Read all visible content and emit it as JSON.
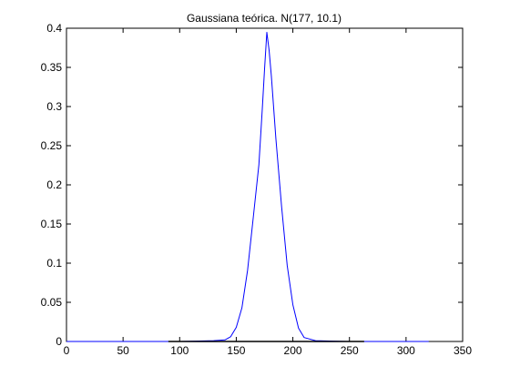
{
  "chart_data": {
    "type": "line",
    "title": "Gaussiana teórica. N(177, 10.1)",
    "xlabel": "",
    "ylabel": "",
    "xlim": [
      0,
      350
    ],
    "ylim": [
      0,
      0.4
    ],
    "xticks": [
      0,
      50,
      100,
      150,
      200,
      250,
      300,
      350
    ],
    "yticks": [
      0,
      0.05,
      0.1,
      0.15,
      0.2,
      0.25,
      0.3,
      0.35,
      0.4
    ],
    "xtick_labels": [
      "0",
      "50",
      "100",
      "150",
      "200",
      "250",
      "300",
      "350"
    ],
    "ytick_labels": [
      "0",
      "0.05",
      "0.1",
      "0.15",
      "0.2",
      "0.25",
      "0.3",
      "0.35",
      "0.4"
    ],
    "grid": false,
    "series": [
      {
        "color": "#0000ff",
        "x": [
          0,
          50,
          100,
          130,
          140,
          145,
          150,
          155,
          160,
          165,
          170,
          173,
          175,
          177,
          179,
          181,
          185,
          190,
          195,
          200,
          205,
          210,
          220,
          250,
          300,
          320
        ],
        "y": [
          0,
          0,
          0,
          0.001,
          0.002,
          0.006,
          0.018,
          0.043,
          0.091,
          0.158,
          0.226,
          0.297,
          0.348,
          0.3948,
          0.372,
          0.339,
          0.259,
          0.173,
          0.097,
          0.047,
          0.017,
          0.005,
          0.001,
          0,
          0,
          0
        ]
      },
      {
        "color": "#000000",
        "x": [
          90,
          250,
          263
        ],
        "y": [
          0,
          0,
          0
        ]
      }
    ]
  }
}
